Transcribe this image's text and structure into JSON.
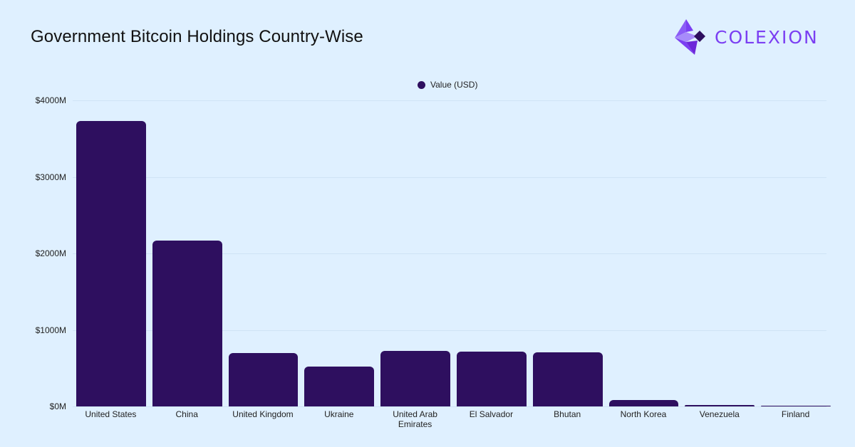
{
  "header": {
    "title": "Government Bitcoin Holdings Country-Wise",
    "logo_text": "COLEXION",
    "logo_color": "#7b3ff2"
  },
  "legend": {
    "label": "Value (USD)",
    "color": "#2e0f5f"
  },
  "yaxis": {
    "ticks": [
      "$0M",
      "$1000M",
      "$2000M",
      "$3000M",
      "$4000M"
    ]
  },
  "chart_data": {
    "type": "bar",
    "title": "Government Bitcoin Holdings Country-Wise",
    "xlabel": "",
    "ylabel": "",
    "categories": [
      "United States",
      "China",
      "United Kingdom",
      "Ukraine",
      "United Arab Emirates",
      "El Salvador",
      "Bhutan",
      "North Korea",
      "Venezuela",
      "Finland"
    ],
    "series": [
      {
        "name": "Value (USD)",
        "color": "#2e0f5f",
        "values": [
          3730,
          2167,
          698,
          521,
          726,
          720,
          707,
          84,
          19,
          4
        ]
      }
    ],
    "unit": "USD millions",
    "ylim": [
      0,
      4000
    ],
    "yticks": [
      0,
      1000,
      2000,
      3000,
      4000
    ],
    "grid": true,
    "legend_position": "top-center"
  }
}
